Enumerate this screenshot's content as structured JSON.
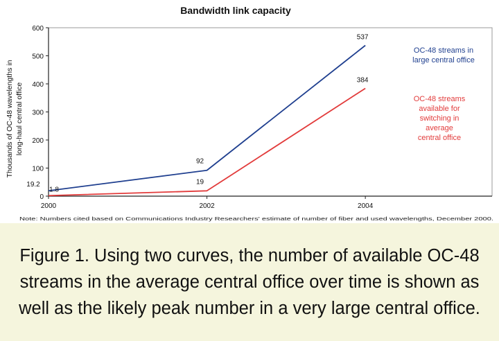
{
  "chart_data": {
    "type": "line",
    "title": "Bandwidth link capacity",
    "ylabel": "Thousands of OC-48 wavelengths in long-haul central office",
    "xlabel": "",
    "x": [
      2000,
      2002,
      2004
    ],
    "x_tick_labels": [
      "2000",
      "2002",
      "2004"
    ],
    "y_tick_labels": [
      "0",
      "100",
      "200",
      "300",
      "400",
      "500",
      "600"
    ],
    "ylim": [
      0,
      600
    ],
    "xlim": [
      2000,
      2005.6
    ],
    "grid": false,
    "series": [
      {
        "name": "OC-48 streams in large central office",
        "name_lines": [
          "OC-48 streams in",
          "large central office"
        ],
        "color": "#1f3f8f",
        "values": [
          19.2,
          92,
          537
        ],
        "value_labels": [
          "19.2",
          "92",
          "537"
        ]
      },
      {
        "name": "OC-48 streams available for switching in average central office",
        "name_lines": [
          "OC-48 streams",
          "available for",
          "switching in",
          "average",
          "central office"
        ],
        "color": "#e23b3b",
        "values": [
          1.8,
          19,
          384
        ],
        "value_labels": [
          "1.8",
          "19",
          "384"
        ]
      }
    ],
    "note": "Note: Numbers cited based on Communications Industry Researchers' estimate of number of fiber and used wavelengths, December 2000."
  },
  "caption": "Figure 1. Using two curves, the number of available OC-48 streams in the average central office over time is shown as well as the likely peak number in a very large central office."
}
